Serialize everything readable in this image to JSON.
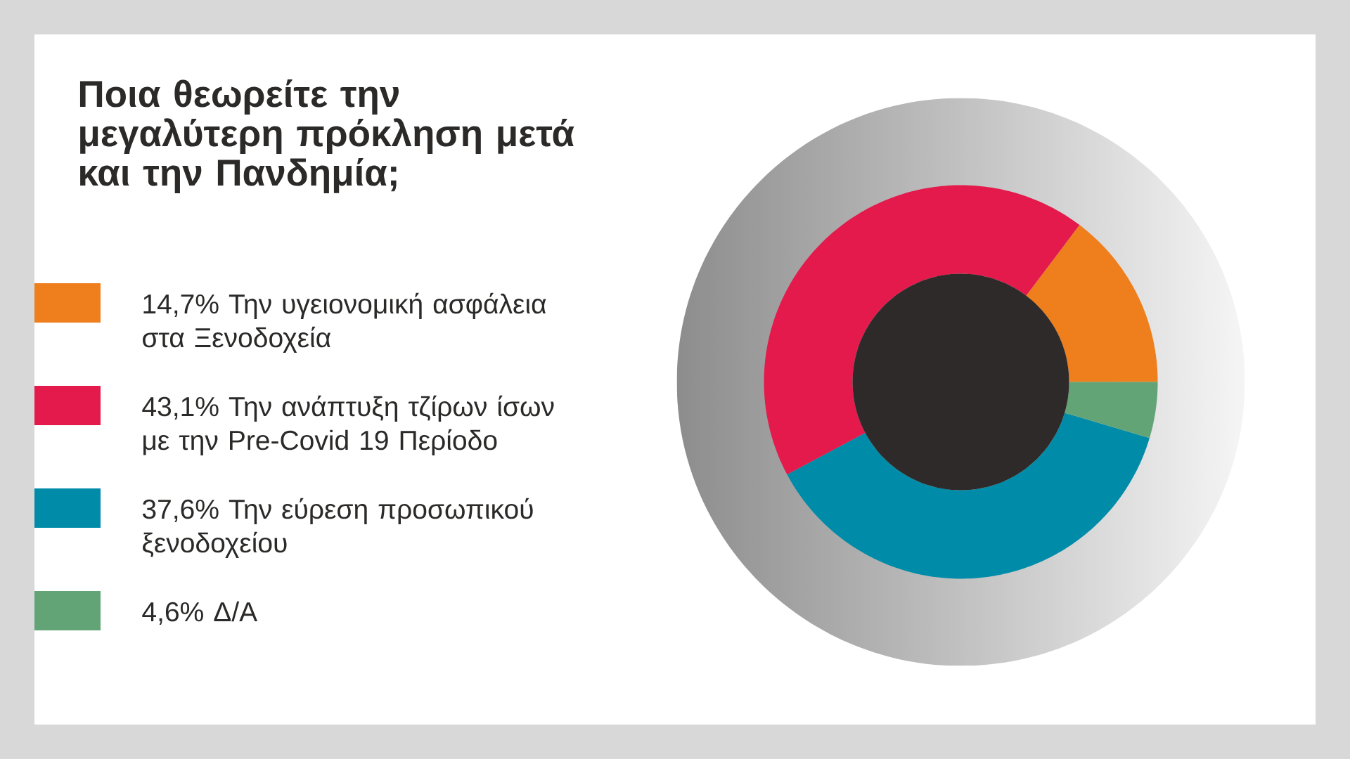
{
  "chart_data": {
    "type": "donut",
    "title": "Ποια θεωρείτε την μεγαλύτερη πρόκληση μετά και την Πανδημία;",
    "categories": [
      "14,7%  Την υγειονομική ασφάλεια στα Ξενοδοχεία",
      "43,1%  Την ανάπτυξη τζίρων ίσων με την Pre-Covid 19 Περίοδο",
      "37,6%  Την εύρεση προσωπικού ξενοδοχείου",
      "4,6% Δ/Α"
    ],
    "values": [
      14.7,
      43.1,
      37.6,
      4.6
    ],
    "colors": [
      "#ee7f1c",
      "#e31a4b",
      "#008ca9",
      "#62a476"
    ],
    "legend": "left"
  }
}
